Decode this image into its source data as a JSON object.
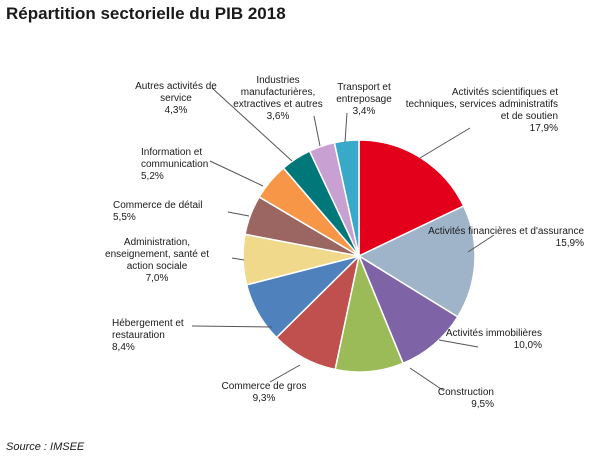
{
  "title": "Répartition sectorielle du PIB 2018",
  "source": "Source : IMSEE",
  "chart_data": {
    "type": "pie",
    "title": "Répartition sectorielle du PIB 2018",
    "slices": [
      {
        "label": "Activités scientifiques et techniques, services administratifs et de soutien",
        "value": 17.9,
        "text": "17,9%",
        "color": "#e2001a"
      },
      {
        "label": "Activités financières et d'assurance",
        "value": 15.9,
        "text": "15,9%",
        "color": "#9fb4c8"
      },
      {
        "label": "Activités immobilières",
        "value": 10.0,
        "text": "10,0%",
        "color": "#7e63a6"
      },
      {
        "label": "Construction",
        "value": 9.5,
        "text": "9,5%",
        "color": "#9bbb59"
      },
      {
        "label": "Commerce de gros",
        "value": 9.3,
        "text": "9,3%",
        "color": "#c0504d"
      },
      {
        "label": "Hébergement et restauration",
        "value": 8.4,
        "text": "8,4%",
        "color": "#4f81bd"
      },
      {
        "label": "Administration, enseignement, santé et action sociale",
        "value": 7.0,
        "text": "7,0%",
        "color": "#f1d98c"
      },
      {
        "label": "Commerce de détail",
        "value": 5.5,
        "text": "5,5%",
        "color": "#9b6661"
      },
      {
        "label": "Information et communication",
        "value": 5.2,
        "text": "5,2%",
        "color": "#f79646"
      },
      {
        "label": "Autres activités de service",
        "value": 4.3,
        "text": "4,3%",
        "color": "#00787a"
      },
      {
        "label": "Industries manufacturières, extractives et autres",
        "value": 3.6,
        "text": "3,6%",
        "color": "#c9a0d2"
      },
      {
        "label": "Transport et entreposage",
        "value": 3.4,
        "text": "3,4%",
        "color": "#39a9c9"
      }
    ]
  }
}
